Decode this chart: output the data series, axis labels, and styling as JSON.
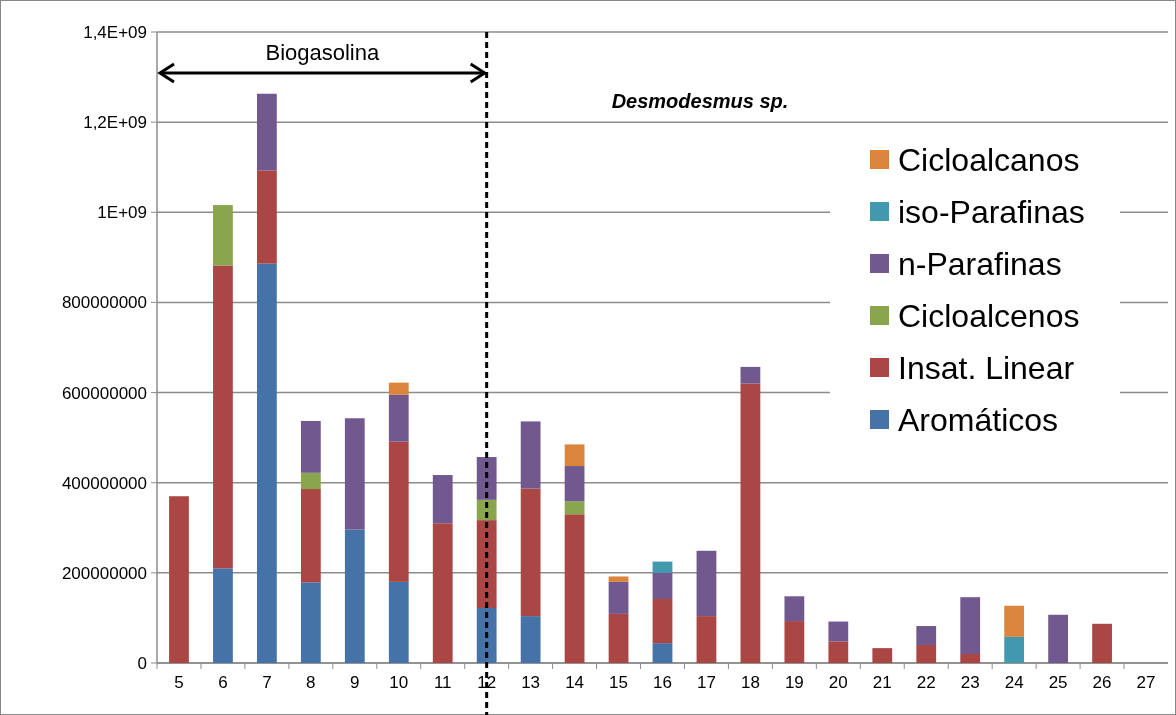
{
  "chart_data": {
    "type": "bar",
    "stacked": true,
    "categories": [
      "5",
      "6",
      "7",
      "8",
      "9",
      "10",
      "11",
      "12",
      "13",
      "14",
      "15",
      "16",
      "17",
      "18",
      "19",
      "20",
      "21",
      "22",
      "23",
      "24",
      "25",
      "26",
      "27"
    ],
    "series": [
      {
        "name": "Aromáticos",
        "color": "#4572a7",
        "values": [
          null,
          210000000,
          886000000,
          179000000,
          296000000,
          180000000,
          null,
          122000000,
          104000000,
          null,
          null,
          44000000,
          null,
          null,
          null,
          null,
          null,
          null,
          null,
          null,
          null,
          null,
          null
        ]
      },
      {
        "name": "Insat. Linear",
        "color": "#aa4643",
        "values": [
          370000000,
          672000000,
          207000000,
          207000000,
          null,
          311000000,
          310000000,
          195000000,
          283000000,
          330000000,
          109000000,
          98000000,
          104000000,
          620000000,
          93000000,
          48000000,
          33000000,
          40000000,
          20000000,
          null,
          null,
          87000000,
          null
        ]
      },
      {
        "name": "Cicloalcenos",
        "color": "#89a54e",
        "values": [
          null,
          134000000,
          null,
          36000000,
          null,
          null,
          null,
          45000000,
          null,
          29000000,
          null,
          null,
          null,
          null,
          null,
          null,
          null,
          null,
          null,
          null,
          null,
          null,
          null
        ]
      },
      {
        "name": "n-Parafinas",
        "color": "#71588f",
        "values": [
          null,
          null,
          170000000,
          115000000,
          247000000,
          104000000,
          107000000,
          95000000,
          149000000,
          78000000,
          71000000,
          58000000,
          145000000,
          37000000,
          55000000,
          44000000,
          null,
          42000000,
          126000000,
          null,
          107000000,
          null,
          null
        ]
      },
      {
        "name": "iso-Parafinas",
        "color": "#4198af",
        "values": [
          null,
          null,
          null,
          null,
          null,
          null,
          null,
          null,
          null,
          null,
          null,
          25000000,
          null,
          null,
          null,
          null,
          null,
          null,
          null,
          58000000,
          null,
          null,
          null
        ]
      },
      {
        "name": "Cicloalcanos",
        "color": "#db843d",
        "values": [
          null,
          null,
          null,
          null,
          null,
          27000000,
          null,
          null,
          null,
          48000000,
          12000000,
          null,
          null,
          null,
          null,
          null,
          null,
          null,
          null,
          69000000,
          null,
          null,
          null
        ]
      }
    ],
    "ylim": [
      0,
      1400000000
    ],
    "yticks": [
      0,
      200000000,
      400000000,
      600000000,
      800000000,
      {
        "value": 1000000000,
        "label": "1E+09"
      },
      {
        "value": 1200000000,
        "label": "1,2E+09"
      },
      {
        "value": 1400000000,
        "label": "1,4E+09"
      }
    ],
    "grid": "y",
    "legend": "right",
    "ref_lines": [
      {
        "axis": "x",
        "value": "12",
        "color": "#000000",
        "line_style": "dashed"
      }
    ],
    "annotations": [
      "Biogasolina",
      "Desmodesmus sp."
    ]
  }
}
